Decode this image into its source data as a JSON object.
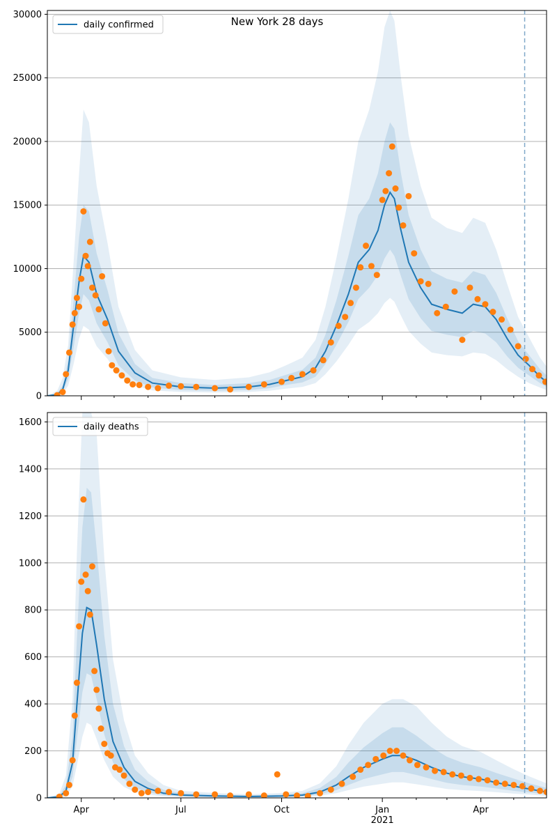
{
  "figure_title": "New York 28 days",
  "colors": {
    "model_line": "#1f77b4",
    "observed_points": "#ff7f0e",
    "band": "#1f77b4",
    "grid": "#b0b0b0",
    "vline": "#7fa8c9"
  },
  "x_axis": {
    "range": [
      "2020-03-01",
      "2021-05-31"
    ],
    "major_ticks": [
      {
        "date": "2020-04-01",
        "label": "Apr"
      },
      {
        "date": "2020-07-01",
        "label": "Jul"
      },
      {
        "date": "2020-10-01",
        "label": "Oct"
      },
      {
        "date": "2021-01-01",
        "label": "Jan"
      },
      {
        "date": "2021-04-01",
        "label": "Apr"
      }
    ],
    "year_label": {
      "date": "2021-01-01",
      "label": "2021"
    },
    "minor_ticks": [
      "2020-05-01",
      "2020-06-01",
      "2020-08-01",
      "2020-09-01",
      "2020-11-01",
      "2020-12-01",
      "2021-02-01",
      "2021-03-01",
      "2021-05-01"
    ]
  },
  "vline_date": "2021-05-11",
  "chart_data": [
    {
      "type": "line",
      "title": "New York 28 days",
      "legend": "daily confirmed",
      "legend_position": "top-left",
      "grid": "horizontal",
      "ylim": [
        0,
        30300
      ],
      "y_ticks": [
        0,
        5000,
        10000,
        15000,
        20000,
        25000,
        30000
      ],
      "model": {
        "x": [
          "2020-03-01",
          "2020-03-10",
          "2020-03-15",
          "2020-03-20",
          "2020-03-25",
          "2020-03-30",
          "2020-04-03",
          "2020-04-08",
          "2020-04-15",
          "2020-04-25",
          "2020-05-05",
          "2020-05-20",
          "2020-06-05",
          "2020-07-01",
          "2020-08-01",
          "2020-09-01",
          "2020-09-20",
          "2020-10-05",
          "2020-10-20",
          "2020-11-01",
          "2020-11-10",
          "2020-11-20",
          "2020-12-01",
          "2020-12-10",
          "2020-12-20",
          "2020-12-28",
          "2021-01-03",
          "2021-01-08",
          "2021-01-12",
          "2021-01-18",
          "2021-01-25",
          "2021-02-05",
          "2021-02-15",
          "2021-03-01",
          "2021-03-15",
          "2021-03-25",
          "2021-04-05",
          "2021-04-15",
          "2021-04-25",
          "2021-05-05",
          "2021-05-15",
          "2021-05-25",
          "2021-05-31"
        ],
        "y": [
          0,
          100,
          500,
          2000,
          5500,
          9000,
          11000,
          10500,
          8000,
          6000,
          3500,
          1800,
          1000,
          700,
          600,
          700,
          900,
          1200,
          1500,
          2200,
          3500,
          5500,
          8000,
          10500,
          11500,
          13000,
          15000,
          16000,
          15500,
          13000,
          10500,
          8500,
          7200,
          6800,
          6500,
          7200,
          7000,
          6000,
          4500,
          3200,
          2400,
          1500,
          1100
        ],
        "band_inner": {
          "lower": [
            0,
            50,
            300,
            1300,
            3800,
            6500,
            8000,
            7500,
            5700,
            4200,
            2400,
            1200,
            650,
            450,
            400,
            450,
            600,
            850,
            1050,
            1500,
            2500,
            4000,
            5800,
            7600,
            8500,
            9500,
            10800,
            11500,
            11000,
            9400,
            7600,
            6100,
            5100,
            4800,
            4600,
            5100,
            4900,
            4200,
            3100,
            2200,
            1600,
            1000,
            700
          ],
          "upper": [
            0,
            200,
            800,
            2800,
            7500,
            12500,
            15000,
            14500,
            11200,
            8300,
            4900,
            2500,
            1400,
            1000,
            850,
            1000,
            1250,
            1650,
            2050,
            3000,
            4800,
            7500,
            11000,
            14200,
            15500,
            17500,
            20000,
            21500,
            21000,
            17500,
            14200,
            11500,
            9800,
            9200,
            8900,
            9800,
            9500,
            8100,
            6100,
            4300,
            3200,
            2100,
            1600
          ]
        },
        "band_outer": {
          "lower": [
            0,
            20,
            150,
            800,
            2500,
            4500,
            5500,
            5200,
            3900,
            2900,
            1600,
            800,
            430,
            300,
            260,
            300,
            400,
            560,
            700,
            1000,
            1700,
            2700,
            4000,
            5200,
            5800,
            6500,
            7300,
            7700,
            7400,
            6300,
            5100,
            4100,
            3400,
            3200,
            3100,
            3400,
            3300,
            2800,
            2100,
            1500,
            1000,
            650,
            450
          ],
          "upper": [
            0,
            400,
            1400,
            4000,
            10500,
            17500,
            22500,
            21500,
            16500,
            12000,
            7000,
            3600,
            2000,
            1450,
            1250,
            1450,
            1850,
            2400,
            3000,
            4400,
            7000,
            10800,
            15500,
            20000,
            22500,
            25500,
            29000,
            30300,
            29500,
            25000,
            20500,
            16500,
            14000,
            13200,
            12800,
            14000,
            13600,
            11500,
            8800,
            6200,
            4600,
            3000,
            2300
          ]
        }
      },
      "observed": {
        "x": [
          "2020-03-10",
          "2020-03-15",
          "2020-03-18",
          "2020-03-21",
          "2020-03-24",
          "2020-03-26",
          "2020-03-28",
          "2020-03-30",
          "2020-04-01",
          "2020-04-03",
          "2020-04-05",
          "2020-04-07",
          "2020-04-09",
          "2020-04-11",
          "2020-04-14",
          "2020-04-17",
          "2020-04-20",
          "2020-04-23",
          "2020-04-26",
          "2020-04-29",
          "2020-05-03",
          "2020-05-08",
          "2020-05-13",
          "2020-05-18",
          "2020-05-24",
          "2020-06-01",
          "2020-06-10",
          "2020-06-20",
          "2020-07-01",
          "2020-07-15",
          "2020-08-01",
          "2020-08-15",
          "2020-09-01",
          "2020-09-15",
          "2020-10-01",
          "2020-10-10",
          "2020-10-20",
          "2020-10-30",
          "2020-11-08",
          "2020-11-15",
          "2020-11-22",
          "2020-11-28",
          "2020-12-03",
          "2020-12-08",
          "2020-12-12",
          "2020-12-17",
          "2020-12-22",
          "2020-12-27",
          "2021-01-01",
          "2021-01-04",
          "2021-01-07",
          "2021-01-10",
          "2021-01-13",
          "2021-01-16",
          "2021-01-20",
          "2021-01-25",
          "2021-01-30",
          "2021-02-05",
          "2021-02-12",
          "2021-02-20",
          "2021-02-28",
          "2021-03-08",
          "2021-03-15",
          "2021-03-22",
          "2021-03-29",
          "2021-04-05",
          "2021-04-12",
          "2021-04-20",
          "2021-04-28",
          "2021-05-05",
          "2021-05-12",
          "2021-05-18",
          "2021-05-24",
          "2021-05-30"
        ],
        "y": [
          50,
          300,
          1700,
          3400,
          5600,
          6500,
          7700,
          7000,
          9200,
          14500,
          11000,
          10200,
          12100,
          8500,
          7900,
          6800,
          9400,
          5700,
          3500,
          2400,
          2000,
          1600,
          1200,
          900,
          850,
          700,
          600,
          800,
          750,
          700,
          600,
          500,
          700,
          900,
          1100,
          1400,
          1700,
          2000,
          2800,
          4200,
          5500,
          6200,
          7300,
          8500,
          10100,
          11800,
          10200,
          9500,
          15400,
          16100,
          17500,
          19600,
          16300,
          14800,
          13400,
          15700,
          11200,
          9000,
          8800,
          6500,
          7000,
          8200,
          4400,
          8500,
          7600,
          7200,
          6600,
          6000,
          5200,
          3900,
          2900,
          2100,
          1600,
          1100
        ]
      }
    },
    {
      "type": "line",
      "legend": "daily deaths",
      "legend_position": "top-left",
      "grid": "horizontal",
      "ylim": [
        0,
        1640
      ],
      "y_ticks": [
        0,
        200,
        400,
        600,
        800,
        1000,
        1200,
        1400,
        1600
      ],
      "model": {
        "x": [
          "2020-03-01",
          "2020-03-12",
          "2020-03-18",
          "2020-03-24",
          "2020-03-28",
          "2020-04-02",
          "2020-04-06",
          "2020-04-10",
          "2020-04-15",
          "2020-04-22",
          "2020-04-30",
          "2020-05-10",
          "2020-05-20",
          "2020-06-01",
          "2020-06-15",
          "2020-07-01",
          "2020-08-01",
          "2020-09-01",
          "2020-10-01",
          "2020-10-20",
          "2020-11-05",
          "2020-11-20",
          "2020-12-01",
          "2020-12-15",
          "2021-01-01",
          "2021-01-10",
          "2021-01-20",
          "2021-02-01",
          "2021-02-15",
          "2021-03-01",
          "2021-03-15",
          "2021-04-01",
          "2021-04-15",
          "2021-05-01",
          "2021-05-15",
          "2021-05-31"
        ],
        "y": [
          0,
          5,
          30,
          150,
          400,
          700,
          810,
          800,
          650,
          420,
          240,
          130,
          70,
          40,
          20,
          12,
          8,
          6,
          8,
          12,
          25,
          55,
          90,
          130,
          165,
          180,
          180,
          160,
          130,
          105,
          90,
          80,
          65,
          50,
          38,
          25
        ],
        "band_inner": {
          "lower": [
            0,
            2,
            15,
            90,
            250,
            450,
            530,
            520,
            420,
            270,
            150,
            80,
            42,
            24,
            12,
            7,
            4,
            3,
            4,
            7,
            15,
            33,
            55,
            80,
            100,
            110,
            110,
            98,
            80,
            64,
            55,
            48,
            40,
            30,
            23,
            15
          ],
          "upper": [
            0,
            10,
            55,
            260,
            680,
            1150,
            1320,
            1300,
            1060,
            690,
            400,
            220,
            120,
            70,
            35,
            20,
            14,
            10,
            14,
            20,
            42,
            90,
            150,
            215,
            275,
            300,
            300,
            265,
            215,
            175,
            150,
            130,
            106,
            82,
            62,
            42
          ]
        },
        "band_outer": {
          "lower": [
            0,
            1,
            6,
            50,
            140,
            260,
            320,
            310,
            250,
            160,
            90,
            47,
            25,
            14,
            7,
            4,
            2,
            2,
            2,
            4,
            9,
            20,
            33,
            48,
            60,
            66,
            66,
            58,
            48,
            38,
            33,
            29,
            24,
            18,
            14,
            9
          ],
          "upper": [
            0,
            18,
            95,
            420,
            1050,
            1640,
            1640,
            1640,
            1550,
            1020,
            590,
            330,
            180,
            105,
            55,
            30,
            21,
            15,
            21,
            30,
            62,
            135,
            225,
            320,
            400,
            420,
            420,
            390,
            320,
            260,
            220,
            195,
            160,
            122,
            92,
            62
          ]
        }
      },
      "observed": {
        "x": [
          "2020-03-12",
          "2020-03-18",
          "2020-03-21",
          "2020-03-24",
          "2020-03-26",
          "2020-03-28",
          "2020-03-30",
          "2020-04-01",
          "2020-04-03",
          "2020-04-05",
          "2020-04-07",
          "2020-04-09",
          "2020-04-11",
          "2020-04-13",
          "2020-04-15",
          "2020-04-17",
          "2020-04-19",
          "2020-04-22",
          "2020-04-25",
          "2020-04-28",
          "2020-05-02",
          "2020-05-06",
          "2020-05-10",
          "2020-05-15",
          "2020-05-20",
          "2020-05-26",
          "2020-06-01",
          "2020-06-10",
          "2020-06-20",
          "2020-07-01",
          "2020-07-15",
          "2020-08-01",
          "2020-08-15",
          "2020-09-01",
          "2020-09-15",
          "2020-09-27",
          "2020-10-05",
          "2020-10-15",
          "2020-10-25",
          "2020-11-05",
          "2020-11-15",
          "2020-11-25",
          "2020-12-05",
          "2020-12-12",
          "2020-12-19",
          "2020-12-26",
          "2021-01-02",
          "2021-01-08",
          "2021-01-14",
          "2021-01-20",
          "2021-01-26",
          "2021-02-02",
          "2021-02-10",
          "2021-02-18",
          "2021-02-26",
          "2021-03-06",
          "2021-03-14",
          "2021-03-22",
          "2021-03-30",
          "2021-04-07",
          "2021-04-15",
          "2021-04-23",
          "2021-05-01",
          "2021-05-09",
          "2021-05-17",
          "2021-05-25",
          "2021-05-31"
        ],
        "y": [
          5,
          20,
          55,
          160,
          350,
          490,
          730,
          920,
          1270,
          950,
          880,
          780,
          985,
          540,
          460,
          380,
          295,
          230,
          190,
          180,
          130,
          120,
          95,
          60,
          35,
          20,
          25,
          30,
          25,
          20,
          15,
          15,
          10,
          15,
          10,
          100,
          15,
          10,
          8,
          20,
          35,
          60,
          90,
          120,
          140,
          165,
          180,
          200,
          200,
          180,
          160,
          140,
          130,
          115,
          110,
          100,
          95,
          85,
          80,
          75,
          65,
          60,
          55,
          50,
          40,
          30,
          25
        ]
      }
    }
  ]
}
